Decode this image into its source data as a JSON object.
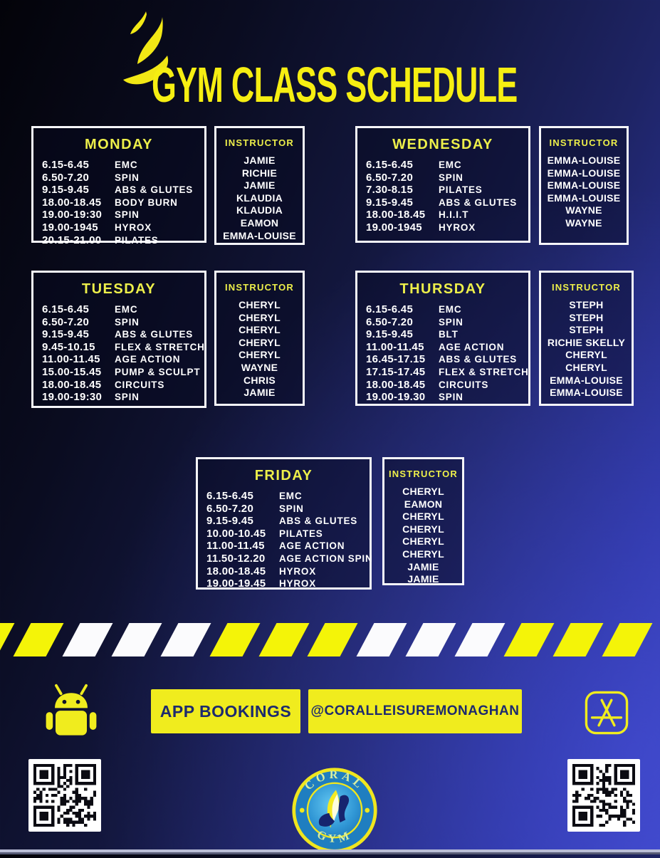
{
  "title": "GYM CLASS SCHEDULE",
  "instructor_header": "INSTRUCTOR",
  "days": [
    {
      "name": "MONDAY",
      "rows": [
        {
          "time": "6.15-6.45",
          "class": "EMC",
          "instructor": "JAMIE"
        },
        {
          "time": "6.50-7.20",
          "class": "SPIN",
          "instructor": "RICHIE"
        },
        {
          "time": "9.15-9.45",
          "class": "ABS & GLUTES",
          "instructor": "JAMIE"
        },
        {
          "time": "18.00-18.45",
          "class": "BODY BURN",
          "instructor": "KLAUDIA"
        },
        {
          "time": "19.00-19:30",
          "class": "SPIN",
          "instructor": "KLAUDIA"
        },
        {
          "time": "19.00-1945",
          "class": "HYROX",
          "instructor": "EAMON"
        },
        {
          "time": "20.15-21.00",
          "class": "PILATES",
          "instructor": "EMMA-LOUISE"
        }
      ]
    },
    {
      "name": "TUESDAY",
      "rows": [
        {
          "time": "6.15-6.45",
          "class": "EMC",
          "instructor": "CHERYL"
        },
        {
          "time": "6.50-7.20",
          "class": "SPIN",
          "instructor": "CHERYL"
        },
        {
          "time": "9.15-9.45",
          "class": "ABS & GLUTES",
          "instructor": "CHERYL"
        },
        {
          "time": "9.45-10.15",
          "class": "FLEX & STRETCH",
          "instructor": "CHERYL"
        },
        {
          "time": "11.00-11.45",
          "class": "AGE ACTION",
          "instructor": "CHERYL"
        },
        {
          "time": "15.00-15.45",
          "class": "PUMP & SCULPT",
          "instructor": "WAYNE"
        },
        {
          "time": "18.00-18.45",
          "class": "CIRCUITS",
          "instructor": "CHRIS"
        },
        {
          "time": "19.00-19:30",
          "class": "SPIN",
          "instructor": "JAMIE"
        }
      ]
    },
    {
      "name": "WEDNESDAY",
      "rows": [
        {
          "time": "6.15-6.45",
          "class": "EMC",
          "instructor": "EMMA-LOUISE"
        },
        {
          "time": "6.50-7.20",
          "class": "SPIN",
          "instructor": "EMMA-LOUISE"
        },
        {
          "time": "7.30-8.15",
          "class": "PILATES",
          "instructor": "EMMA-LOUISE"
        },
        {
          "time": "9.15-9.45",
          "class": "ABS & GLUTES",
          "instructor": "EMMA-LOUISE"
        },
        {
          "time": "18.00-18.45",
          "class": "H.I.I.T",
          "instructor": "WAYNE"
        },
        {
          "time": "19.00-1945",
          "class": "HYROX",
          "instructor": "WAYNE"
        }
      ]
    },
    {
      "name": "THURSDAY",
      "rows": [
        {
          "time": "6.15-6.45",
          "class": "EMC",
          "instructor": "STEPH"
        },
        {
          "time": "6.50-7.20",
          "class": "SPIN",
          "instructor": "STEPH"
        },
        {
          "time": "9.15-9.45",
          "class": "BLT",
          "instructor": "STEPH"
        },
        {
          "time": "11.00-11.45",
          "class": "AGE ACTION",
          "instructor": "RICHIE SKELLY"
        },
        {
          "time": "16.45-17.15",
          "class": "ABS & GLUTES",
          "instructor": "CHERYL"
        },
        {
          "time": "17.15-17.45",
          "class": "FLEX & STRETCH",
          "instructor": "CHERYL"
        },
        {
          "time": "18.00-18.45",
          "class": "CIRCUITS",
          "instructor": "EMMA-LOUISE"
        },
        {
          "time": "19.00-19.30",
          "class": "SPIN",
          "instructor": "EMMA-LOUISE"
        }
      ]
    },
    {
      "name": "FRIDAY",
      "rows": [
        {
          "time": "6.15-6.45",
          "class": "EMC",
          "instructor": "CHERYL"
        },
        {
          "time": "6.50-7.20",
          "class": "SPIN",
          "instructor": "EAMON"
        },
        {
          "time": "9.15-9.45",
          "class": "ABS & GLUTES",
          "instructor": "CHERYL"
        },
        {
          "time": "10.00-10.45",
          "class": "PILATES",
          "instructor": "CHERYL"
        },
        {
          "time": "11.00-11.45",
          "class": "AGE ACTION",
          "instructor": "CHERYL"
        },
        {
          "time": "11.50-12.20",
          "class": "AGE ACTION SPIN",
          "instructor": "CHERYL"
        },
        {
          "time": "18.00-18.45",
          "class": "HYROX",
          "instructor": "JAMIE"
        },
        {
          "time": "19.00-19.45",
          "class": "HYROX",
          "instructor": "JAMIE"
        }
      ]
    }
  ],
  "footer": {
    "app_bookings_label": "APP BOOKINGS",
    "social_handle": "@CORALLEISUREMONAGHAN"
  },
  "logo_badge": {
    "top_text": "CORAL",
    "bottom_text": "GYM"
  },
  "icons": {
    "header_logo": "flame-logo",
    "left_store": "android-icon",
    "right_store": "app-store-icon",
    "qr": "qr-code"
  },
  "colors": {
    "accent_yellow": "#f0ec1e",
    "header_yellow": "#edef4a",
    "title_yellow": "#f6ee12",
    "stripe_white": "#fbfbfd",
    "text_white": "#ffffff",
    "button_text_navy": "#1d2a6e",
    "background_navy": "#1c2166"
  },
  "stripe_pattern": [
    "yellow",
    "yellow",
    "white",
    "white",
    "white",
    "yellow",
    "yellow",
    "yellow",
    "white",
    "white",
    "white",
    "yellow",
    "yellow",
    "yellow"
  ]
}
